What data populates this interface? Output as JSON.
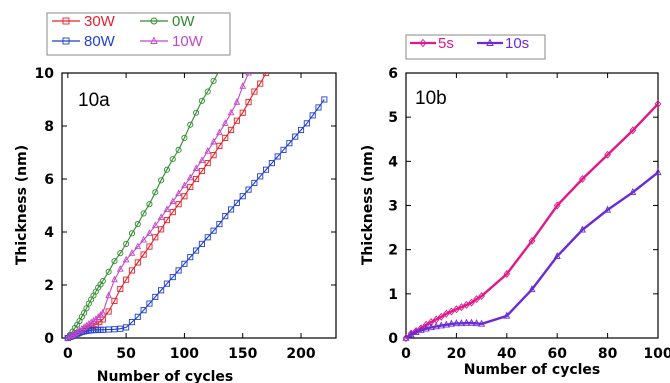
{
  "chart_data": [
    {
      "type": "line",
      "panel_label": "10a",
      "xlabel": "Number of cycles",
      "ylabel": "Thickness (nm)",
      "xlim": [
        -5,
        230
      ],
      "ylim": [
        0,
        10
      ],
      "xticks": [
        0,
        50,
        100,
        150,
        200
      ],
      "yticks": [
        0,
        2,
        4,
        6,
        8,
        10
      ],
      "legend": {
        "placement": "top-left outside",
        "columns": 2
      },
      "series": [
        {
          "name": "30W",
          "color": "#e8202a",
          "marker": "square",
          "x": [
            0,
            3,
            6,
            9,
            12,
            15,
            18,
            21,
            24,
            27,
            30,
            35,
            40,
            45,
            50,
            55,
            60,
            65,
            70,
            75,
            80,
            85,
            90,
            95,
            100,
            105,
            110,
            115,
            120,
            125,
            130,
            135,
            140,
            145,
            150,
            155,
            160,
            165,
            170
          ],
          "y": [
            0.0,
            0.06,
            0.12,
            0.18,
            0.25,
            0.32,
            0.38,
            0.45,
            0.52,
            0.6,
            0.7,
            1.0,
            1.4,
            1.85,
            2.2,
            2.55,
            2.85,
            3.15,
            3.45,
            3.8,
            4.1,
            4.45,
            4.75,
            5.05,
            5.35,
            5.7,
            6.0,
            6.3,
            6.6,
            6.9,
            7.25,
            7.55,
            7.85,
            8.2,
            8.5,
            8.9,
            9.3,
            9.6,
            10.0
          ]
        },
        {
          "name": "0W",
          "color": "#2e8b2e",
          "marker": "circle",
          "x": [
            0,
            2,
            4,
            6,
            8,
            10,
            12,
            14,
            16,
            18,
            20,
            22,
            24,
            26,
            28,
            30,
            35,
            40,
            45,
            50,
            55,
            60,
            65,
            70,
            75,
            80,
            85,
            90,
            95,
            100,
            105,
            110,
            115,
            120,
            125,
            130,
            135
          ],
          "y": [
            0.0,
            0.12,
            0.24,
            0.38,
            0.5,
            0.64,
            0.8,
            0.95,
            1.12,
            1.3,
            1.45,
            1.6,
            1.75,
            1.9,
            2.02,
            2.15,
            2.5,
            2.9,
            3.2,
            3.55,
            3.95,
            4.3,
            4.7,
            5.05,
            5.5,
            5.95,
            6.35,
            6.75,
            7.1,
            7.55,
            8.05,
            8.5,
            8.95,
            9.3,
            9.7,
            10.1,
            10.4
          ]
        },
        {
          "name": "80W",
          "color": "#1f3fcf",
          "marker": "square",
          "x": [
            0,
            2,
            4,
            6,
            8,
            10,
            12,
            14,
            16,
            18,
            20,
            22,
            24,
            26,
            28,
            30,
            35,
            40,
            45,
            50,
            55,
            60,
            65,
            70,
            75,
            80,
            85,
            90,
            95,
            100,
            105,
            110,
            115,
            120,
            125,
            130,
            135,
            140,
            145,
            150,
            155,
            160,
            165,
            170,
            175,
            180,
            185,
            190,
            195,
            200,
            205,
            210,
            215,
            220
          ],
          "y": [
            0.0,
            0.04,
            0.08,
            0.12,
            0.16,
            0.2,
            0.23,
            0.25,
            0.27,
            0.28,
            0.29,
            0.3,
            0.3,
            0.31,
            0.31,
            0.31,
            0.32,
            0.33,
            0.35,
            0.4,
            0.6,
            0.8,
            1.05,
            1.3,
            1.55,
            1.8,
            2.05,
            2.3,
            2.55,
            2.8,
            3.05,
            3.3,
            3.55,
            3.8,
            4.05,
            4.3,
            4.6,
            4.85,
            5.1,
            5.35,
            5.6,
            5.85,
            6.1,
            6.35,
            6.6,
            6.85,
            7.1,
            7.35,
            7.6,
            7.85,
            8.1,
            8.4,
            8.7,
            9.0
          ]
        },
        {
          "name": "10W",
          "color": "#c247c9",
          "marker": "triangle",
          "x": [
            0,
            2,
            4,
            6,
            8,
            10,
            12,
            14,
            16,
            18,
            20,
            22,
            24,
            26,
            28,
            30,
            35,
            40,
            45,
            50,
            55,
            60,
            65,
            70,
            75,
            80,
            85,
            90,
            95,
            100,
            105,
            110,
            115,
            120,
            125,
            130,
            135,
            140,
            145,
            150,
            155
          ],
          "y": [
            0.0,
            0.05,
            0.1,
            0.16,
            0.22,
            0.28,
            0.34,
            0.4,
            0.46,
            0.52,
            0.58,
            0.64,
            0.7,
            0.78,
            0.86,
            0.95,
            1.6,
            2.2,
            2.6,
            2.95,
            3.2,
            3.45,
            3.7,
            3.95,
            4.25,
            4.55,
            4.85,
            5.15,
            5.45,
            5.75,
            6.05,
            6.4,
            6.7,
            7.05,
            7.4,
            7.75,
            8.1,
            8.5,
            8.9,
            9.5,
            10.0
          ]
        }
      ]
    },
    {
      "type": "line",
      "panel_label": "10b",
      "xlabel": "Number of cycles",
      "ylabel": "Thickness (nm)",
      "xlim": [
        0,
        100
      ],
      "ylim": [
        0,
        6
      ],
      "xticks": [
        0,
        20,
        40,
        60,
        80,
        100
      ],
      "yticks": [
        0,
        1,
        2,
        3,
        4,
        5,
        6
      ],
      "legend": {
        "placement": "top-left outside",
        "columns": 2
      },
      "series": [
        {
          "name": "5s",
          "color": "#e0188a",
          "marker": "diamond",
          "x": [
            0,
            2,
            4,
            6,
            8,
            10,
            12,
            14,
            16,
            18,
            20,
            22,
            24,
            26,
            28,
            30,
            40,
            50,
            60,
            70,
            80,
            90,
            100
          ],
          "y": [
            0.0,
            0.1,
            0.16,
            0.22,
            0.3,
            0.36,
            0.42,
            0.48,
            0.55,
            0.6,
            0.65,
            0.7,
            0.75,
            0.8,
            0.88,
            0.95,
            1.45,
            2.2,
            3.0,
            3.6,
            4.15,
            4.7,
            5.3
          ]
        },
        {
          "name": "10s",
          "color": "#6a2ad8",
          "marker": "triangle",
          "x": [
            0,
            2,
            4,
            6,
            8,
            10,
            12,
            14,
            16,
            18,
            20,
            22,
            24,
            26,
            28,
            30,
            40,
            50,
            60,
            70,
            80,
            90,
            100
          ],
          "y": [
            0.0,
            0.08,
            0.13,
            0.18,
            0.21,
            0.24,
            0.26,
            0.28,
            0.3,
            0.32,
            0.33,
            0.33,
            0.34,
            0.34,
            0.33,
            0.32,
            0.5,
            1.1,
            1.85,
            2.45,
            2.9,
            3.3,
            3.75
          ]
        }
      ]
    }
  ]
}
